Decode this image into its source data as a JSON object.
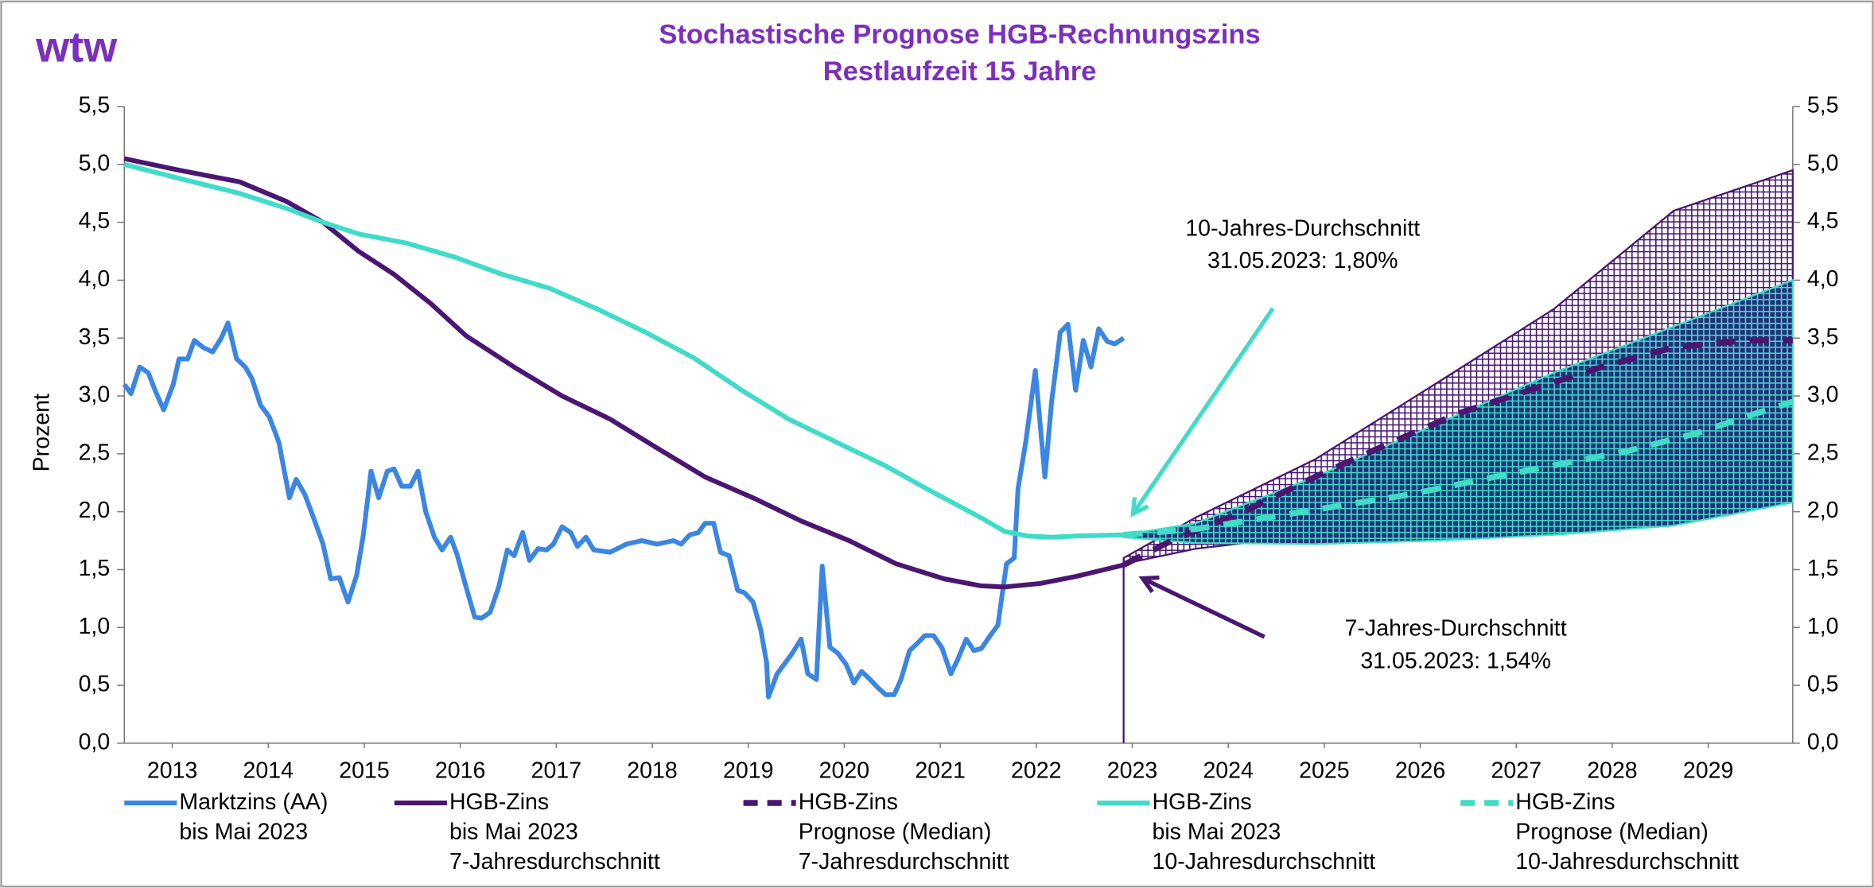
{
  "chart_data": {
    "type": "line",
    "logo": "wtw",
    "title": "Stochastische Prognose HGB-Rechnungszins",
    "subtitle": "Restlaufzeit 15 Jahre",
    "y_label": "Prozent",
    "xlim": [
      2013,
      2030.38
    ],
    "xticks": [
      {
        "value": 2013.5,
        "label": "2013"
      },
      {
        "value": 2014.5,
        "label": "2014"
      },
      {
        "value": 2015.5,
        "label": "2015"
      },
      {
        "value": 2016.5,
        "label": "2016"
      },
      {
        "value": 2017.5,
        "label": "2017"
      },
      {
        "value": 2018.5,
        "label": "2018"
      },
      {
        "value": 2019.5,
        "label": "2019"
      },
      {
        "value": 2020.5,
        "label": "2020"
      },
      {
        "value": 2021.5,
        "label": "2021"
      },
      {
        "value": 2022.5,
        "label": "2022"
      },
      {
        "value": 2023.5,
        "label": "2023"
      },
      {
        "value": 2024.5,
        "label": "2024"
      },
      {
        "value": 2025.5,
        "label": "2025"
      },
      {
        "value": 2026.5,
        "label": "2026"
      },
      {
        "value": 2027.5,
        "label": "2027"
      },
      {
        "value": 2028.5,
        "label": "2028"
      },
      {
        "value": 2029.5,
        "label": "2029"
      }
    ],
    "ylim": [
      0,
      5.5
    ],
    "yticks": [
      {
        "value": 0,
        "label": "0,0"
      },
      {
        "value": 0.5,
        "label": "0,5"
      },
      {
        "value": 1,
        "label": "1,0"
      },
      {
        "value": 1.5,
        "label": "1,5"
      },
      {
        "value": 2,
        "label": "2,0"
      },
      {
        "value": 2.5,
        "label": "2,5"
      },
      {
        "value": 3,
        "label": "3,0"
      },
      {
        "value": 3.5,
        "label": "3,5"
      },
      {
        "value": 4,
        "label": "4,0"
      },
      {
        "value": 4.5,
        "label": "4,5"
      },
      {
        "value": 5,
        "label": "5,0"
      },
      {
        "value": 5.5,
        "label": "5,5"
      }
    ],
    "y2lim": [
      0,
      5.5
    ],
    "y2ticks": [
      {
        "value": 0,
        "label": "0,0"
      },
      {
        "value": 0.5,
        "label": "0,5"
      },
      {
        "value": 1,
        "label": "1,0"
      },
      {
        "value": 1.5,
        "label": "1,5"
      },
      {
        "value": 2,
        "label": "2,0"
      },
      {
        "value": 2.5,
        "label": "2,5"
      },
      {
        "value": 3,
        "label": "3,0"
      },
      {
        "value": 3.5,
        "label": "3,5"
      },
      {
        "value": 4,
        "label": "4,0"
      },
      {
        "value": 4.5,
        "label": "4,5"
      },
      {
        "value": 5,
        "label": "5,0"
      },
      {
        "value": 5.5,
        "label": "5,5"
      }
    ],
    "bands": [
      {
        "color": "#4a1672",
        "background": "#ffffff",
        "x": [
          2023.41,
          2024.16,
          2025.4,
          2026.65,
          2027.89,
          2029.14,
          2030.38
        ],
        "upper": [
          1.6,
          1.95,
          2.45,
          3.1,
          3.75,
          4.6,
          4.95
        ],
        "lower": [
          1.55,
          1.68,
          1.8,
          1.98,
          2.2,
          2.4,
          2.23
        ]
      },
      {
        "color": "#40dcc8",
        "background": "#23307a",
        "x": [
          2023.41,
          2024.16,
          2025.4,
          2026.65,
          2027.89,
          2029.14,
          2030.38
        ],
        "upper": [
          1.8,
          1.9,
          2.3,
          2.75,
          3.2,
          3.6,
          4.0
        ],
        "lower": [
          1.78,
          1.73,
          1.72,
          1.75,
          1.8,
          1.88,
          2.08
        ]
      }
    ],
    "series": [
      {
        "name": "Marktzins (AA)\nbis Mai 2023",
        "color": "#3b86e3",
        "dashed": false,
        "x": [
          2013,
          2013.07,
          2013.16,
          2013.25,
          2013.32,
          2013.41,
          2013.51,
          2013.57,
          2013.66,
          2013.73,
          2013.82,
          2013.92,
          2014.01,
          2014.08,
          2014.17,
          2014.26,
          2014.33,
          2014.42,
          2014.51,
          2014.61,
          2014.72,
          2014.79,
          2014.88,
          2014.97,
          2015.07,
          2015.15,
          2015.24,
          2015.33,
          2015.42,
          2015.49,
          2015.57,
          2015.65,
          2015.74,
          2015.81,
          2015.89,
          2015.98,
          2016.06,
          2016.14,
          2016.23,
          2016.31,
          2016.4,
          2016.47,
          2016.56,
          2016.65,
          2016.72,
          2016.81,
          2016.9,
          2016.99,
          2017.06,
          2017.15,
          2017.22,
          2017.31,
          2017.4,
          2017.47,
          2017.56,
          2017.65,
          2017.72,
          2017.81,
          2017.89,
          2018.06,
          2018.23,
          2018.39,
          2018.55,
          2018.72,
          2018.8,
          2018.89,
          2018.98,
          2019.05,
          2019.14,
          2019.21,
          2019.3,
          2019.39,
          2019.46,
          2019.55,
          2019.63,
          2019.69,
          2019.71,
          2019.8,
          2019.89,
          2019.96,
          2020.05,
          2020.12,
          2020.21,
          2020.27,
          2020.35,
          2020.43,
          2020.52,
          2020.6,
          2020.68,
          2020.77,
          2020.85,
          2020.93,
          2021.02,
          2021.09,
          2021.18,
          2021.27,
          2021.34,
          2021.43,
          2021.52,
          2021.61,
          2021.68,
          2021.77,
          2021.85,
          2021.93,
          2022.02,
          2022.1,
          2022.19,
          2022.27,
          2022.31,
          2022.39,
          2022.49,
          2022.59,
          2022.66,
          2022.75,
          2022.83,
          2022.91,
          2022.99,
          2023.07,
          2023.15,
          2023.24,
          2023.32,
          2023.41
        ],
        "values": [
          3.1,
          3.02,
          3.25,
          3.2,
          3.05,
          2.88,
          3.1,
          3.32,
          3.32,
          3.48,
          3.42,
          3.38,
          3.5,
          3.63,
          3.32,
          3.25,
          3.15,
          2.92,
          2.82,
          2.6,
          2.12,
          2.28,
          2.15,
          1.95,
          1.72,
          1.42,
          1.43,
          1.22,
          1.45,
          1.8,
          2.35,
          2.12,
          2.35,
          2.37,
          2.22,
          2.22,
          2.35,
          2.0,
          1.78,
          1.67,
          1.78,
          1.62,
          1.35,
          1.09,
          1.08,
          1.13,
          1.35,
          1.67,
          1.62,
          1.82,
          1.58,
          1.68,
          1.67,
          1.72,
          1.87,
          1.82,
          1.7,
          1.78,
          1.67,
          1.65,
          1.72,
          1.75,
          1.72,
          1.75,
          1.72,
          1.8,
          1.82,
          1.9,
          1.9,
          1.65,
          1.62,
          1.32,
          1.3,
          1.22,
          0.98,
          0.7,
          0.4,
          0.6,
          0.7,
          0.78,
          0.9,
          0.6,
          0.55,
          1.53,
          0.83,
          0.78,
          0.68,
          0.52,
          0.62,
          0.55,
          0.48,
          0.42,
          0.42,
          0.55,
          0.8,
          0.87,
          0.93,
          0.93,
          0.82,
          0.6,
          0.72,
          0.9,
          0.8,
          0.82,
          0.93,
          1.02,
          1.55,
          1.6,
          2.2,
          2.6,
          3.22,
          2.3,
          2.95,
          3.55,
          3.62,
          3.05,
          3.48,
          3.25,
          3.58,
          3.47,
          3.45,
          3.5
        ]
      },
      {
        "name": "HGB-Zins\nbis Mai 2023\n7-Jahresdurchschnitt",
        "color": "#4a1672",
        "dashed": false,
        "x": [
          2013,
          2013.57,
          2014.2,
          2014.69,
          2015.07,
          2015.44,
          2015.81,
          2016.19,
          2016.56,
          2017.06,
          2017.56,
          2018.06,
          2018.55,
          2019.05,
          2019.55,
          2020.05,
          2020.55,
          2021.04,
          2021.54,
          2021.92,
          2022.17,
          2022.54,
          2022.91,
          2023.41
        ],
        "values": [
          5.05,
          4.95,
          4.85,
          4.68,
          4.5,
          4.25,
          4.05,
          3.8,
          3.52,
          3.25,
          3.0,
          2.8,
          2.55,
          2.3,
          2.12,
          1.92,
          1.75,
          1.55,
          1.42,
          1.36,
          1.35,
          1.38,
          1.44,
          1.54
        ]
      },
      {
        "name": "HGB-Zins\nPrognose (Median)\n7-Jahresdurchschnitt",
        "color": "#4a1672",
        "dashed": true,
        "x": [
          2023.41,
          2023.91,
          2024.66,
          2025.4,
          2026.15,
          2026.9,
          2027.64,
          2028.39,
          2029.14,
          2029.89,
          2030.38
        ],
        "values": [
          1.54,
          1.75,
          2.0,
          2.3,
          2.58,
          2.85,
          3.05,
          3.25,
          3.42,
          3.48,
          3.48
        ]
      },
      {
        "name": "HGB-Zins\nbis Mai 2023\n10-Jahresdurchschnitt",
        "color": "#40dcc8",
        "dashed": false,
        "x": [
          2013,
          2013.57,
          2014.2,
          2014.69,
          2015.07,
          2015.44,
          2015.94,
          2016.44,
          2016.94,
          2017.43,
          2017.93,
          2018.43,
          2018.93,
          2019.43,
          2019.92,
          2020.42,
          2020.92,
          2021.42,
          2021.92,
          2022.17,
          2022.41,
          2022.66,
          2022.91,
          2023.41
        ],
        "values": [
          5.0,
          4.88,
          4.75,
          4.62,
          4.5,
          4.4,
          4.32,
          4.2,
          4.05,
          3.93,
          3.75,
          3.55,
          3.33,
          3.05,
          2.8,
          2.6,
          2.4,
          2.17,
          1.95,
          1.83,
          1.79,
          1.78,
          1.79,
          1.8
        ]
      },
      {
        "name": "HGB-Zins\nPrognose (Median)\n10-Jahresdurchschnitt",
        "color": "#40dcc8",
        "dashed": true,
        "x": [
          2023.41,
          2024.16,
          2024.91,
          2025.65,
          2026.4,
          2027.15,
          2027.89,
          2028.64,
          2029.39,
          2029.89,
          2030.38
        ],
        "values": [
          1.8,
          1.85,
          1.95,
          2.05,
          2.15,
          2.28,
          2.4,
          2.52,
          2.68,
          2.82,
          2.95
        ]
      }
    ],
    "annotations": [
      {
        "lines": [
          "10-Jahres-Durchschnitt",
          "31.05.2023: 1,80%"
        ],
        "color": "#40dcc8"
      },
      {
        "lines": [
          "7-Jahres-Durchschnitt",
          "31.05.2023: 1,54%"
        ],
        "color": "#4a1672"
      }
    ]
  }
}
